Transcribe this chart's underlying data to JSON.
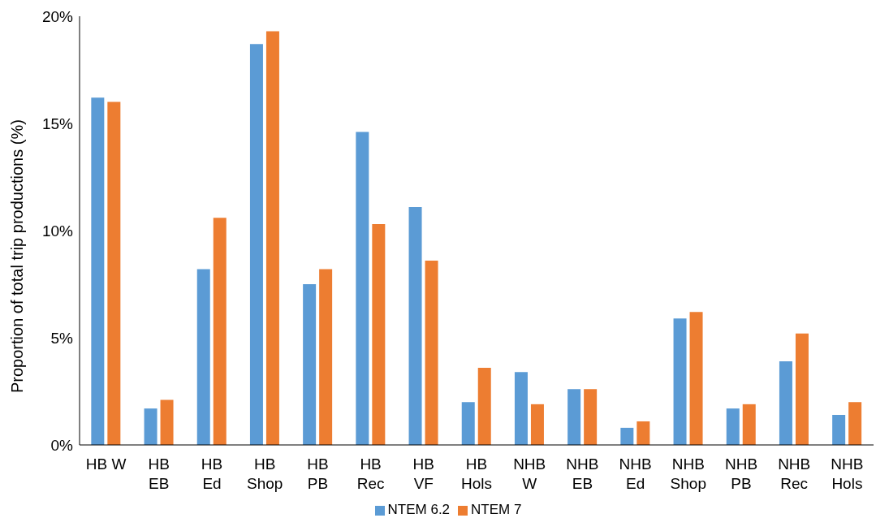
{
  "chart_data": {
    "type": "bar",
    "ylabel": "Proportion of total trip productions (%)",
    "categories": [
      "HB W",
      "HB\nEB",
      "HB\nEd",
      "HB\nShop",
      "HB\nPB",
      "HB\nRec",
      "HB\nVF",
      "HB\nHols",
      "NHB\nW",
      "NHB\nEB",
      "NHB\nEd",
      "NHB\nShop",
      "NHB\nPB",
      "NHB\nRec",
      "NHB\nHols"
    ],
    "series": [
      {
        "name": "NTEM 6.2",
        "color": "#5b9bd5",
        "values": [
          16.2,
          1.7,
          8.2,
          18.7,
          7.5,
          14.6,
          11.1,
          2.0,
          3.4,
          2.6,
          0.8,
          5.9,
          1.7,
          3.9,
          1.4
        ]
      },
      {
        "name": "NTEM 7",
        "color": "#ed7d31",
        "values": [
          16.0,
          2.1,
          10.6,
          19.3,
          8.2,
          10.3,
          8.6,
          3.6,
          1.9,
          2.6,
          1.1,
          6.2,
          1.9,
          5.2,
          2.0
        ]
      }
    ],
    "ylim": [
      0,
      20
    ],
    "yticks": [
      {
        "value": 0,
        "label": "0%"
      },
      {
        "value": 5,
        "label": "5%"
      },
      {
        "value": 10,
        "label": "10%"
      },
      {
        "value": 15,
        "label": "15%"
      },
      {
        "value": 20,
        "label": "20%"
      }
    ],
    "grid": false,
    "legend": "bottom"
  }
}
